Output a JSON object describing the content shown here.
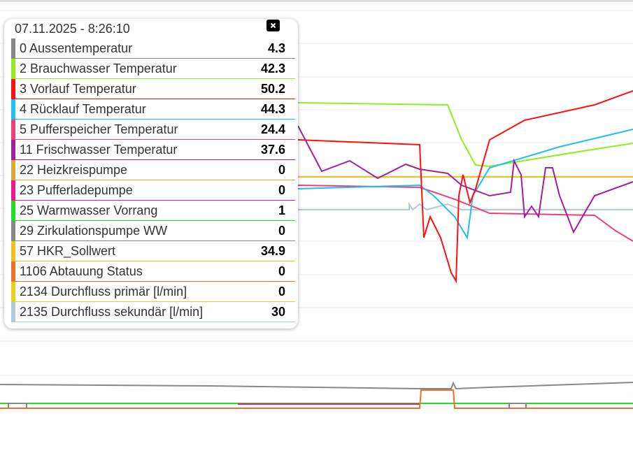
{
  "tooltip": {
    "timestamp": "07.11.2025 - 8:26:10",
    "rows": [
      {
        "label": "0 Aussentemperatur",
        "value": 4.3,
        "color": "#888888"
      },
      {
        "label": "2 Brauchwasser Temperatur",
        "value": 42.3,
        "color": "#90ee20"
      },
      {
        "label": "3 Vorlauf Temperatur",
        "value": 50.2,
        "color": "#ff1010"
      },
      {
        "label": "4 Rücklauf Temperatur",
        "value": 44.3,
        "color": "#20bff0"
      },
      {
        "label": "5 Pufferspeicher Temperatur",
        "value": 24.4,
        "color": "#f0407a"
      },
      {
        "label": "11 Frischwasser Temperatur",
        "value": 37.6,
        "color": "#a020a0"
      },
      {
        "label": "22 Heizkreispumpe",
        "value": 0,
        "color": "#d8a838"
      },
      {
        "label": "23 Pufferladepumpe",
        "value": 0,
        "color": "#f01890"
      },
      {
        "label": "25 Warmwasser Vorrang",
        "value": 1,
        "color": "#20e020"
      },
      {
        "label": "29 Zirkulationspumpe WW",
        "value": 0,
        "color": "#888888"
      },
      {
        "label": "57 HKR_Sollwert",
        "value": 34.9,
        "color": "#f0c020"
      },
      {
        "label": "1106 Abtauung Status",
        "value": 0,
        "color": "#f07030"
      },
      {
        "label": "2134 Durchfluss primär [l/min]",
        "value": 0,
        "color": "#e8d020"
      },
      {
        "label": "2135 Durchfluss sekundär [l/min]",
        "value": 30,
        "color": "#b0c8e0"
      }
    ]
  }
}
